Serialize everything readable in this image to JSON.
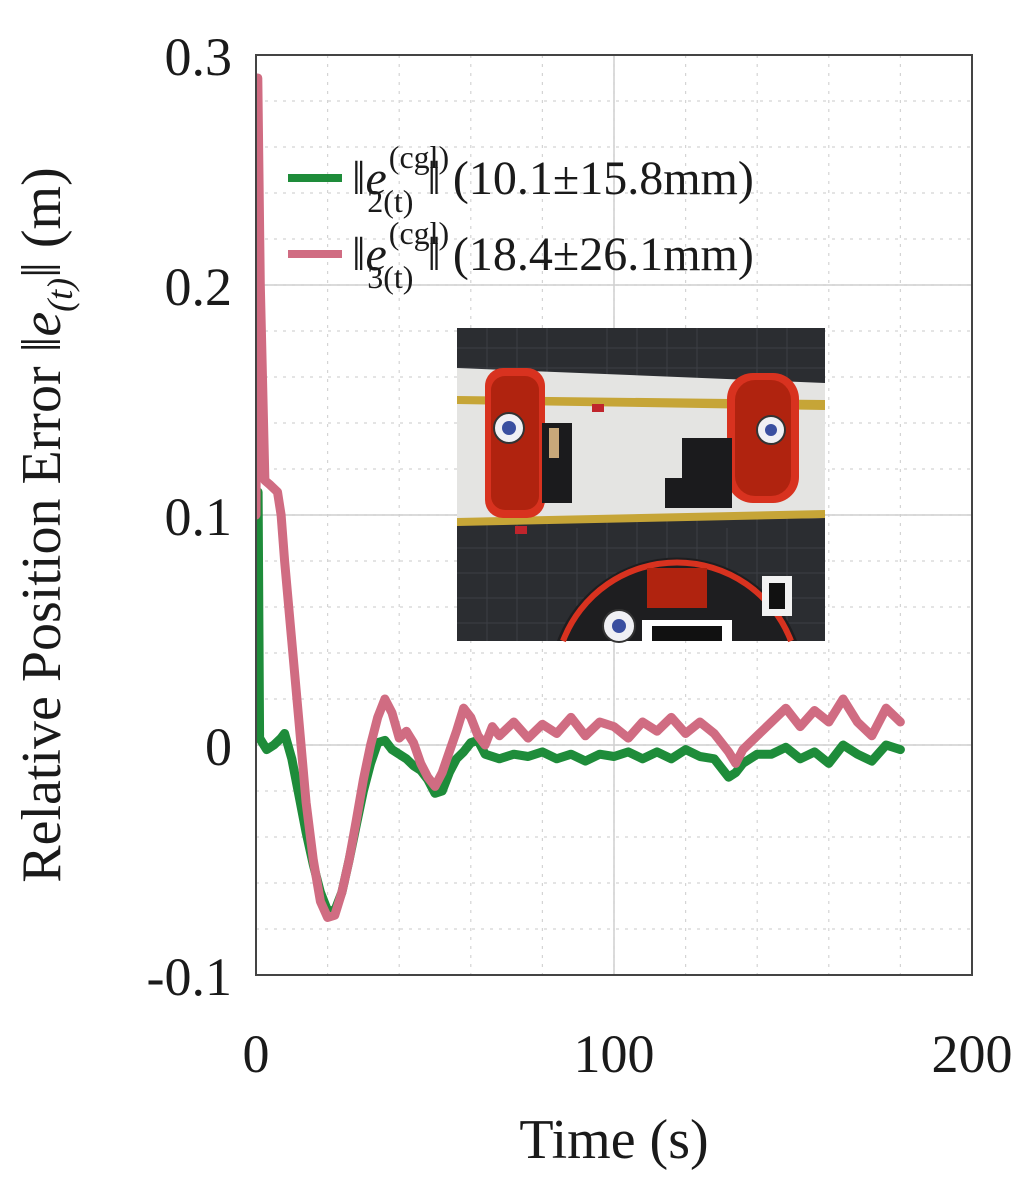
{
  "chart_data": {
    "type": "line",
    "xlabel": "Time (s)",
    "ylabel_text": "Relative Position Error ",
    "ylabel_math": "‖e",
    "ylabel_sub": "(t)",
    "ylabel_close": "‖ (m)",
    "xlim": [
      0,
      200
    ],
    "ylim": [
      -0.1,
      0.3
    ],
    "xticks": [
      0,
      100,
      200
    ],
    "xtick_labels": [
      "0",
      "100",
      "200"
    ],
    "yticks": [
      -0.1,
      0,
      0.1,
      0.2,
      0.3
    ],
    "ytick_labels": [
      "-0.1",
      "0",
      "0.1",
      "0.2",
      "0.3"
    ],
    "grid": true,
    "legend_position": "top-right",
    "series": [
      {
        "name": "‖e_2(t)^(cgl)‖ (10.1±15.8mm)",
        "legend_main": "‖e",
        "legend_sup": "(cgl)",
        "legend_sub": "2(t)",
        "legend_close": "‖ (10.1±15.8mm)",
        "color": "#1e8c3a",
        "x": [
          0,
          0.6,
          1,
          3,
          5,
          7,
          8,
          10,
          12,
          14,
          16,
          18,
          20,
          22,
          24,
          26,
          28,
          30,
          32,
          34,
          36,
          38,
          40,
          42,
          44,
          46,
          48,
          50,
          52,
          54,
          56,
          58,
          60,
          62,
          64,
          68,
          72,
          76,
          80,
          84,
          88,
          92,
          96,
          100,
          104,
          108,
          112,
          116,
          120,
          124,
          128,
          132,
          134,
          136,
          140,
          144,
          148,
          152,
          156,
          160,
          164,
          168,
          172,
          176,
          180
        ],
        "y": [
          0.11,
          0.11,
          0.003,
          -0.002,
          0.0,
          0.003,
          0.005,
          -0.006,
          -0.022,
          -0.038,
          -0.052,
          -0.064,
          -0.072,
          -0.072,
          -0.064,
          -0.05,
          -0.035,
          -0.02,
          -0.008,
          0.001,
          0.002,
          -0.002,
          -0.004,
          -0.006,
          -0.009,
          -0.011,
          -0.015,
          -0.021,
          -0.02,
          -0.012,
          -0.006,
          -0.003,
          0.001,
          0.002,
          -0.004,
          -0.006,
          -0.004,
          -0.005,
          -0.003,
          -0.006,
          -0.004,
          -0.007,
          -0.004,
          -0.005,
          -0.003,
          -0.006,
          -0.003,
          -0.006,
          -0.002,
          -0.005,
          -0.006,
          -0.014,
          -0.012,
          -0.008,
          -0.004,
          -0.004,
          -0.001,
          -0.006,
          -0.003,
          -0.008,
          0.0,
          -0.004,
          -0.007,
          0.0,
          -0.002
        ]
      },
      {
        "name": "‖e_3(t)^(cgl)‖ (18.4±26.1mm)",
        "legend_main": "‖e",
        "legend_sup": "(cgl)",
        "legend_sub": "3(t)",
        "legend_close": "‖ (18.4±26.1mm)",
        "color": "#d06c82",
        "x": [
          0,
          0.5,
          1.2,
          2.5,
          4,
          6,
          7,
          8,
          10,
          12,
          14,
          16,
          18,
          20,
          22,
          24,
          26,
          28,
          30,
          32,
          34,
          36,
          38,
          40,
          42,
          44,
          46,
          48,
          50,
          52,
          54,
          56,
          58,
          60,
          62,
          64,
          66,
          68,
          72,
          76,
          80,
          84,
          88,
          92,
          96,
          100,
          104,
          108,
          112,
          116,
          120,
          124,
          128,
          132,
          134,
          136,
          140,
          144,
          148,
          152,
          156,
          160,
          164,
          168,
          172,
          176,
          180
        ],
        "y": [
          0.1,
          0.29,
          0.2,
          0.115,
          0.113,
          0.11,
          0.1,
          0.08,
          0.045,
          0.01,
          -0.025,
          -0.05,
          -0.068,
          -0.075,
          -0.074,
          -0.064,
          -0.05,
          -0.033,
          -0.015,
          0.0,
          0.012,
          0.02,
          0.014,
          0.003,
          0.006,
          0.001,
          -0.008,
          -0.014,
          -0.018,
          -0.012,
          -0.003,
          0.006,
          0.016,
          0.012,
          0.004,
          0.0,
          0.008,
          0.004,
          0.01,
          0.003,
          0.009,
          0.005,
          0.012,
          0.004,
          0.01,
          0.008,
          0.003,
          0.01,
          0.006,
          0.012,
          0.005,
          0.01,
          0.005,
          -0.003,
          -0.008,
          -0.002,
          0.004,
          0.01,
          0.016,
          0.008,
          0.015,
          0.01,
          0.02,
          0.01,
          0.004,
          0.016,
          0.01
        ]
      }
    ]
  },
  "inset": {
    "caption": ""
  }
}
